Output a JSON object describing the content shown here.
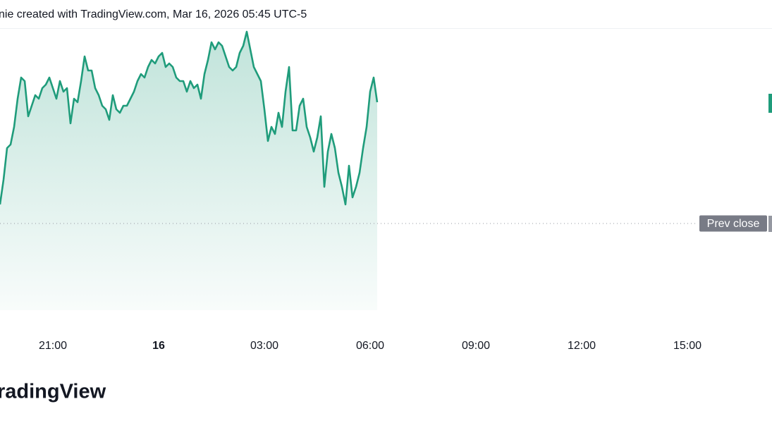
{
  "chart_data": {
    "type": "area",
    "title": "nie created with TradingView.com, Mar 16, 2026 05:45 UTC-5",
    "brand": "radingView",
    "color": "#1f9c7b",
    "xlim": [
      1.5,
      23.4
    ],
    "ylim": [
      0,
      420
    ],
    "xticks": [
      {
        "value": 3,
        "label": "21:00"
      },
      {
        "value": 6,
        "label": "16"
      },
      {
        "value": 9,
        "label": "03:00"
      },
      {
        "value": 12,
        "label": "06:00"
      },
      {
        "value": 15,
        "label": "09:00"
      },
      {
        "value": 18,
        "label": "12:00"
      },
      {
        "value": 21,
        "label": "15:00"
      }
    ],
    "prev_close": {
      "value": 143,
      "label": "Prev close"
    },
    "x": [
      1.5,
      1.6,
      1.7,
      1.8,
      1.9,
      2.0,
      2.1,
      2.2,
      2.3,
      2.4,
      2.5,
      2.6,
      2.7,
      2.8,
      2.9,
      3.0,
      3.1,
      3.2,
      3.3,
      3.4,
      3.5,
      3.6,
      3.7,
      3.8,
      3.9,
      4.0,
      4.1,
      4.2,
      4.3,
      4.4,
      4.5,
      4.6,
      4.7,
      4.8,
      4.9,
      5.0,
      5.1,
      5.2,
      5.3,
      5.4,
      5.5,
      5.6,
      5.7,
      5.8,
      5.9,
      6.0,
      6.1,
      6.2,
      6.3,
      6.4,
      6.5,
      6.6,
      6.7,
      6.8,
      6.9,
      7.0,
      7.1,
      7.2,
      7.3,
      7.4,
      7.5,
      7.6,
      7.7,
      7.8,
      7.9,
      8.0,
      8.1,
      8.2,
      8.3,
      8.4,
      8.5,
      8.6,
      8.7,
      8.8,
      8.9,
      9.0,
      9.1,
      9.2,
      9.3,
      9.4,
      9.5,
      9.6,
      9.7,
      9.8,
      9.9,
      10.0,
      10.1,
      10.2,
      10.3,
      10.4,
      10.5,
      10.6,
      10.7,
      10.8,
      10.9,
      11.0,
      11.1,
      11.2,
      11.3,
      11.4,
      11.5,
      11.6,
      11.7,
      11.8,
      11.9,
      12.0,
      12.1,
      12.2
    ],
    "values": [
      170,
      205,
      250,
      255,
      280,
      320,
      350,
      345,
      295,
      310,
      325,
      320,
      335,
      340,
      350,
      335,
      320,
      345,
      330,
      335,
      285,
      320,
      315,
      345,
      380,
      360,
      360,
      335,
      325,
      310,
      305,
      290,
      325,
      305,
      300,
      310,
      310,
      320,
      330,
      345,
      355,
      350,
      365,
      375,
      370,
      380,
      385,
      365,
      370,
      365,
      350,
      345,
      345,
      330,
      345,
      335,
      340,
      320,
      355,
      375,
      400,
      390,
      400,
      395,
      380,
      365,
      360,
      365,
      385,
      395,
      415,
      390,
      365,
      355,
      345,
      305,
      260,
      280,
      270,
      300,
      280,
      330,
      365,
      275,
      275,
      310,
      320,
      280,
      265,
      245,
      265,
      295,
      195,
      245,
      270,
      250,
      215,
      195,
      170,
      225,
      180,
      195,
      215,
      250,
      280,
      330,
      350,
      315
    ]
  }
}
